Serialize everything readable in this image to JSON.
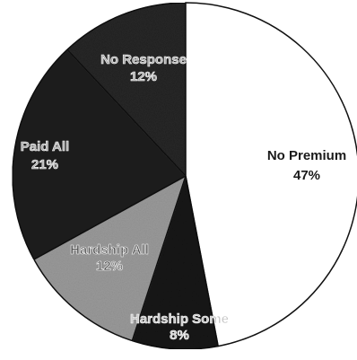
{
  "chart_data": {
    "type": "pie",
    "title": "",
    "slices": [
      {
        "label": "No Premium",
        "value": 47,
        "pct_label": "47%",
        "color": "#ffffff",
        "text_color": "#1a1a1a",
        "text_stroke": "none"
      },
      {
        "label": "Hardship Some",
        "value": 8,
        "pct_label": "8%",
        "color": "#141414",
        "text_color": "#c8c8c8",
        "text_stroke": "#ffffff"
      },
      {
        "label": "Hardship All",
        "value": 12,
        "pct_label": "12%",
        "color": "#9a9a9a",
        "text_color": "#555555",
        "text_stroke": "#ffffff"
      },
      {
        "label": "Paid All",
        "value": 21,
        "pct_label": "21%",
        "color": "#1e1e1e",
        "text_color": "#aaaaaa",
        "text_stroke": "#ffffff"
      },
      {
        "label": "No Response",
        "value": 12,
        "pct_label": "12%",
        "color": "#262626",
        "text_color": "#aaaaaa",
        "text_stroke": "#ffffff"
      }
    ],
    "start_angle_deg": 0,
    "direction": "clockwise",
    "legend": "none",
    "labels_inside": true
  }
}
